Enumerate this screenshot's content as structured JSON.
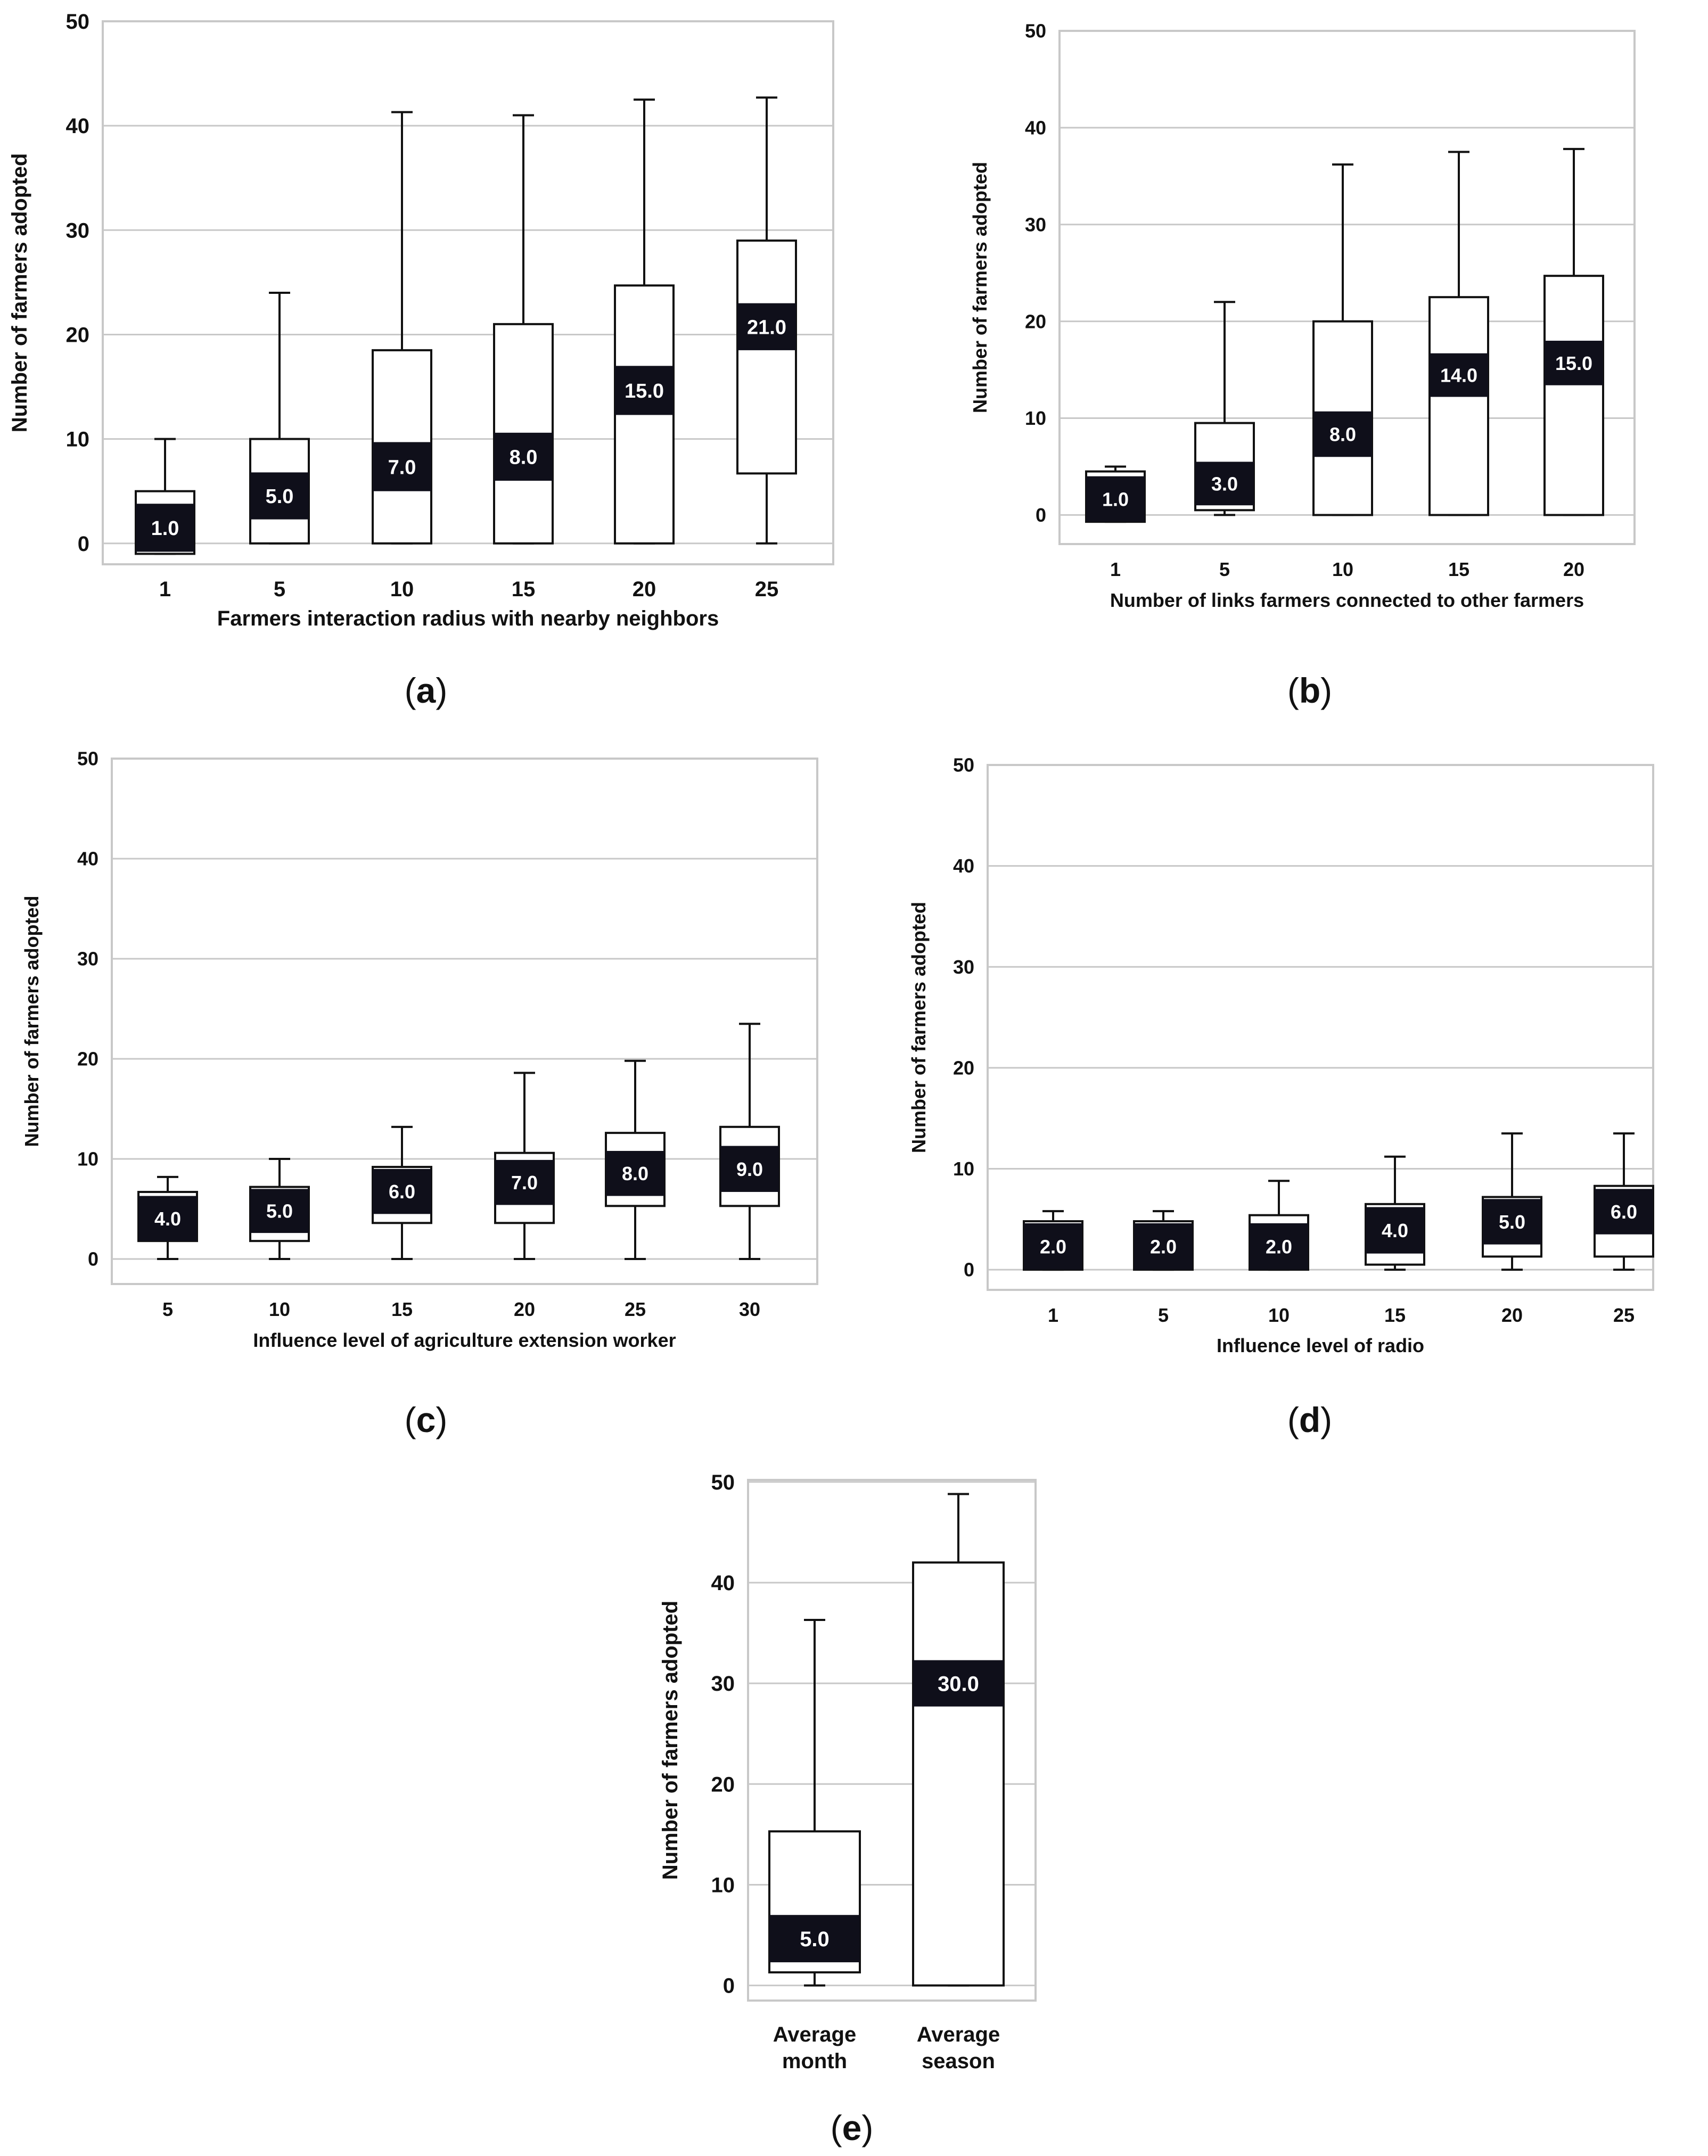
{
  "figure": {
    "panels": [
      {
        "id": "a",
        "caption_letter": "a",
        "caption_open": "(",
        "caption_close": ")"
      },
      {
        "id": "b",
        "caption_letter": "b",
        "caption_open": "(",
        "caption_close": ")"
      },
      {
        "id": "c",
        "caption_letter": "c",
        "caption_open": "(",
        "caption_close": ")"
      },
      {
        "id": "d",
        "caption_letter": "d",
        "caption_open": "(",
        "caption_close": ")"
      },
      {
        "id": "e",
        "caption_letter": "e",
        "caption_open": "(",
        "caption_close": ")"
      }
    ]
  },
  "colors": {
    "box_fill": "#ffffff",
    "box_stroke": "#111111",
    "median_label_bg": "#0f0f1a",
    "median_label_text": "#ffffff",
    "grid": "#c8c8c8",
    "frame": "#c8c8c8",
    "text": "#111111"
  },
  "chart_data": [
    {
      "id": "a",
      "type": "box",
      "title": "",
      "xlabel": "Farmers interaction radius with nearby neighbors",
      "ylabel": "Number of farmers adopted",
      "ylim": [
        -2,
        50
      ],
      "yticks": [
        0,
        10,
        20,
        30,
        40,
        50
      ],
      "grid": true,
      "categories": [
        "1",
        "5",
        "10",
        "15",
        "20",
        "25"
      ],
      "boxes": [
        {
          "whisker_low": -1,
          "q1": -1,
          "median": 1.0,
          "q3": 5,
          "whisker_high": 10,
          "label_low": -0.8,
          "label_high": 3.8,
          "label": "1.0"
        },
        {
          "whisker_low": 0,
          "q1": 0,
          "median": 5.0,
          "q3": 10,
          "whisker_high": 24,
          "label_low": 2.3,
          "label_high": 6.8,
          "label": "5.0"
        },
        {
          "whisker_low": 0,
          "q1": 0,
          "median": 7.0,
          "q3": 18.5,
          "whisker_high": 41.3,
          "label_low": 5,
          "label_high": 9.7,
          "label": "7.0"
        },
        {
          "whisker_low": 0,
          "q1": 0,
          "median": 8.0,
          "q3": 21,
          "whisker_high": 41,
          "label_low": 6,
          "label_high": 10.6,
          "label": "8.0"
        },
        {
          "whisker_low": 0,
          "q1": 0,
          "median": 15.0,
          "q3": 24.7,
          "whisker_high": 42.5,
          "label_low": 12.3,
          "label_high": 17,
          "label": "15.0"
        },
        {
          "whisker_low": 0,
          "q1": 6.7,
          "median": 21.0,
          "q3": 29,
          "whisker_high": 42.7,
          "label_low": 18.5,
          "label_high": 23,
          "label": "21.0"
        }
      ]
    },
    {
      "id": "b",
      "type": "box",
      "title": "",
      "xlabel": "Number of links farmers connected to other farmers",
      "ylabel": "Number of farmers adopted",
      "ylim": [
        -3,
        50
      ],
      "yticks": [
        0,
        10,
        20,
        30,
        40,
        50
      ],
      "grid": true,
      "categories": [
        "1",
        "5",
        "10",
        "15",
        "20"
      ],
      "boxes": [
        {
          "whisker_low": -0.7,
          "q1": -0.7,
          "median": 1.0,
          "q3": 4.5,
          "whisker_high": 5,
          "label_low": -0.7,
          "label_high": 4,
          "label": "1.0"
        },
        {
          "whisker_low": 0,
          "q1": 0.5,
          "median": 3.0,
          "q3": 9.5,
          "whisker_high": 22,
          "label_low": 1,
          "label_high": 5.5,
          "label": "3.0"
        },
        {
          "whisker_low": 0,
          "q1": 0,
          "median": 8.0,
          "q3": 20,
          "whisker_high": 36.2,
          "label_low": 6,
          "label_high": 10.7,
          "label": "8.0"
        },
        {
          "whisker_low": 0,
          "q1": 0,
          "median": 14.0,
          "q3": 22.5,
          "whisker_high": 37.5,
          "label_low": 12.2,
          "label_high": 16.7,
          "label": "14.0"
        },
        {
          "whisker_low": 0,
          "q1": 0,
          "median": 15.0,
          "q3": 24.7,
          "whisker_high": 37.8,
          "label_low": 13.4,
          "label_high": 18,
          "label": "15.0"
        }
      ]
    },
    {
      "id": "c",
      "type": "box",
      "title": "",
      "xlabel": "Influence level of agriculture extension worker",
      "ylabel": "Number of farmers adopted",
      "ylim": [
        -2.5,
        50
      ],
      "yticks": [
        0,
        10,
        20,
        30,
        40,
        50
      ],
      "grid": true,
      "categories": [
        "5",
        "10",
        "15",
        "20",
        "25",
        "30"
      ],
      "boxes": [
        {
          "whisker_low": 0,
          "q1": 1.8,
          "median": 4.0,
          "q3": 6.7,
          "whisker_high": 8.2,
          "label_low": 1.8,
          "label_high": 6.3,
          "label": "4.0"
        },
        {
          "whisker_low": 0,
          "q1": 1.8,
          "median": 5.0,
          "q3": 7.2,
          "whisker_high": 10,
          "label_low": 2.6,
          "label_high": 7,
          "label": "5.0"
        },
        {
          "whisker_low": 0,
          "q1": 3.6,
          "median": 6.0,
          "q3": 9.2,
          "whisker_high": 13.2,
          "label_low": 4.5,
          "label_high": 9,
          "label": "6.0"
        },
        {
          "whisker_low": 0,
          "q1": 3.6,
          "median": 7.0,
          "q3": 10.6,
          "whisker_high": 18.6,
          "label_low": 5.4,
          "label_high": 9.9,
          "label": "7.0"
        },
        {
          "whisker_low": 0,
          "q1": 5.3,
          "median": 8.0,
          "q3": 12.6,
          "whisker_high": 19.8,
          "label_low": 6.3,
          "label_high": 10.8,
          "label": "8.0"
        },
        {
          "whisker_low": 0,
          "q1": 5.3,
          "median": 9.0,
          "q3": 13.2,
          "whisker_high": 23.5,
          "label_low": 6.7,
          "label_high": 11.3,
          "label": "9.0"
        }
      ]
    },
    {
      "id": "d",
      "type": "box",
      "title": "",
      "xlabel": "Influence level of radio",
      "ylabel": "Number of farmers adopted",
      "ylim": [
        -2,
        50
      ],
      "yticks": [
        0,
        10,
        20,
        30,
        40,
        50
      ],
      "grid": true,
      "categories": [
        "1",
        "5",
        "10",
        "15",
        "20",
        "25"
      ],
      "boxes": [
        {
          "whisker_low": 0,
          "q1": 0,
          "median": 2.0,
          "q3": 4.8,
          "whisker_high": 5.8,
          "label_low": 0,
          "label_high": 4.6,
          "label": "2.0"
        },
        {
          "whisker_low": 0,
          "q1": 0,
          "median": 2.0,
          "q3": 4.8,
          "whisker_high": 5.8,
          "label_low": 0,
          "label_high": 4.6,
          "label": "2.0"
        },
        {
          "whisker_low": 0,
          "q1": 0,
          "median": 2.0,
          "q3": 5.4,
          "whisker_high": 8.8,
          "label_low": 0,
          "label_high": 4.6,
          "label": "2.0"
        },
        {
          "whisker_low": 0,
          "q1": 0.5,
          "median": 4.0,
          "q3": 6.5,
          "whisker_high": 11.2,
          "label_low": 1.6,
          "label_high": 6.2,
          "label": "4.0"
        },
        {
          "whisker_low": 0,
          "q1": 1.3,
          "median": 5.0,
          "q3": 7.2,
          "whisker_high": 13.5,
          "label_low": 2.5,
          "label_high": 7,
          "label": "5.0"
        },
        {
          "whisker_low": 0,
          "q1": 1.3,
          "median": 6.0,
          "q3": 8.3,
          "whisker_high": 13.5,
          "label_low": 3.5,
          "label_high": 8,
          "label": "6.0"
        }
      ]
    },
    {
      "id": "e",
      "type": "box",
      "title": "",
      "xlabel": "",
      "ylabel": "Number of farmers adopted",
      "ylim": [
        -1.5,
        50.2
      ],
      "yticks": [
        0,
        10,
        20,
        30,
        40,
        50
      ],
      "grid": true,
      "categories": [
        [
          "Average",
          "month"
        ],
        [
          "Average",
          "season"
        ]
      ],
      "boxes": [
        {
          "whisker_low": 0,
          "q1": 1.3,
          "median": 5.0,
          "q3": 15.3,
          "whisker_high": 36.3,
          "label_low": 2.3,
          "label_high": 7,
          "label": "5.0"
        },
        {
          "whisker_low": 0,
          "q1": 0,
          "median": 30.0,
          "q3": 42,
          "whisker_high": 48.8,
          "label_low": 27.7,
          "label_high": 32.3,
          "label": "30.0"
        }
      ]
    }
  ]
}
